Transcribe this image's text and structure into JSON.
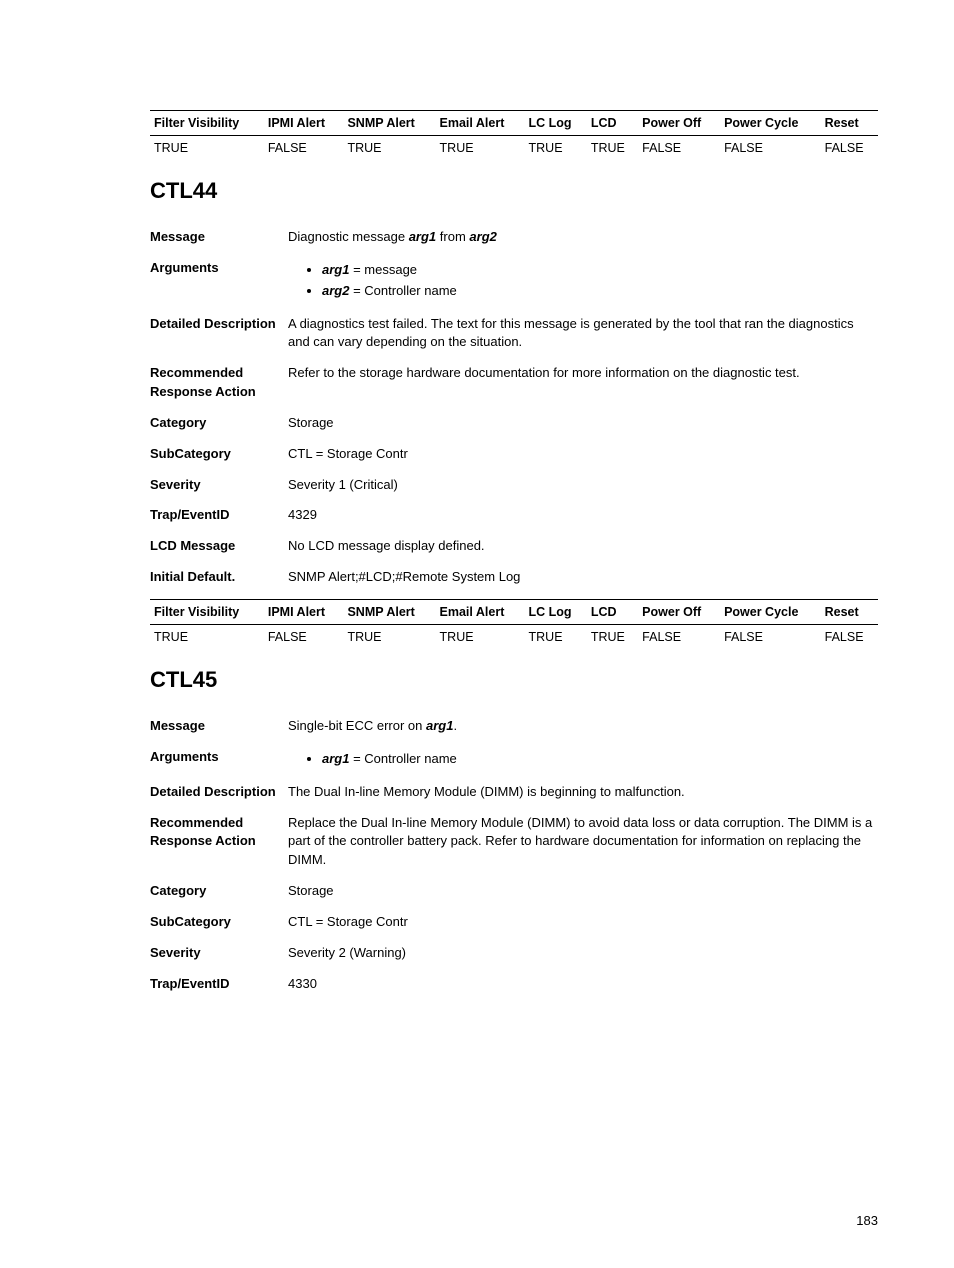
{
  "table1": {
    "headers": [
      "Filter Visibility",
      "IPMI Alert",
      "SNMP Alert",
      "Email Alert",
      "LC Log",
      "LCD",
      "Power Off",
      "Power Cycle",
      "Reset"
    ],
    "row": [
      "TRUE",
      "FALSE",
      "TRUE",
      "TRUE",
      "TRUE",
      "TRUE",
      "FALSE",
      "FALSE",
      "FALSE"
    ]
  },
  "ctl44": {
    "title": "CTL44",
    "message_label": "Message",
    "message_pre": "Diagnostic message",
    "message_arg1": "arg1",
    "message_mid": "from",
    "message_arg2": "arg2",
    "arguments_label": "Arguments",
    "arg1_name": "arg1",
    "arg1_val": " = message",
    "arg2_name": "arg2",
    "arg2_val": " = Controller name",
    "detailed_label": "Detailed Description",
    "detailed_val": "A diagnostics test failed. The text for this message is generated by the tool that ran the diagnostics and can vary depending on the situation.",
    "recommended_label": "Recommended Response Action",
    "recommended_val": "Refer to the storage hardware documentation for more information on the diagnostic test.",
    "category_label": "Category",
    "category_val": "Storage",
    "subcategory_label": "SubCategory",
    "subcategory_val": "CTL = Storage Contr",
    "severity_label": "Severity",
    "severity_val": "Severity 1 (Critical)",
    "trap_label": "Trap/EventID",
    "trap_val": "4329",
    "lcd_label": "LCD Message",
    "lcd_val": "No LCD message display defined.",
    "initial_label": "Initial Default.",
    "initial_val": "SNMP Alert;#LCD;#Remote System Log"
  },
  "table2": {
    "headers": [
      "Filter Visibility",
      "IPMI Alert",
      "SNMP Alert",
      "Email Alert",
      "LC Log",
      "LCD",
      "Power Off",
      "Power Cycle",
      "Reset"
    ],
    "row": [
      "TRUE",
      "FALSE",
      "TRUE",
      "TRUE",
      "TRUE",
      "TRUE",
      "FALSE",
      "FALSE",
      "FALSE"
    ]
  },
  "ctl45": {
    "title": "CTL45",
    "message_label": "Message",
    "message_pre": "Single-bit ECC error on",
    "message_arg1": "arg1",
    "message_post": ".",
    "arguments_label": "Arguments",
    "arg1_name": "arg1",
    "arg1_val": " = Controller name",
    "detailed_label": "Detailed Description",
    "detailed_val": "The Dual In-line Memory Module (DIMM) is beginning to malfunction.",
    "recommended_label": "Recommended Response Action",
    "recommended_val": "Replace the Dual In-line Memory Module (DIMM) to avoid data loss or data corruption. The DIMM is a part of the controller battery pack. Refer to hardware documentation for information on replacing the DIMM.",
    "category_label": "Category",
    "category_val": "Storage",
    "subcategory_label": "SubCategory",
    "subcategory_val": "CTL = Storage Contr",
    "severity_label": "Severity",
    "severity_val": "Severity 2 (Warning)",
    "trap_label": "Trap/EventID",
    "trap_val": "4330"
  },
  "page_number": "183"
}
